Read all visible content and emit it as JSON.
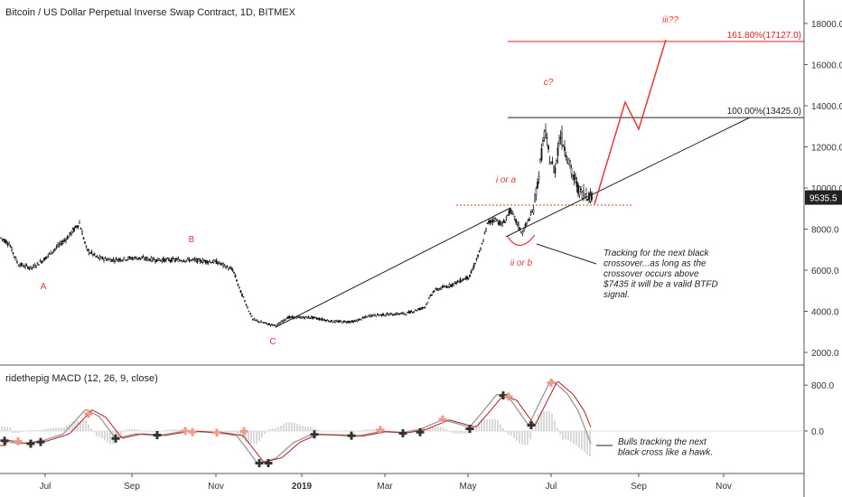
{
  "header": {
    "title": "Bitcoin / US Dollar Perpetual Inverse Swap Contract, 1D, BITMEX"
  },
  "price_panel": {
    "y_ticks": [
      "18000.0",
      "16000.0",
      "14000.0",
      "12000.0",
      "10000.0",
      "8000.0",
      "6000.0",
      "4000.0",
      "2000.0"
    ],
    "last_price": "9535.5",
    "fib_levels": [
      {
        "label": "161.80%(17127.0)",
        "price": 17127,
        "color": "#e02020"
      },
      {
        "label": "100.00%(13425.0)",
        "price": 13425,
        "color": "#222222"
      }
    ],
    "wave_labels": [
      "A",
      "B",
      "C",
      "i or a",
      "ii or b",
      "c?",
      "iii??"
    ],
    "note": "Tracking for the next black crossover...as long as the crossover occurs above $7435 it will be a valid BTFD signal."
  },
  "macd_panel": {
    "title": "ridethepig MACD (12, 26, 9, close)",
    "y_ticks": [
      "800.0",
      "0.0"
    ],
    "note": "Bulls tracking the next black cross like a hawk."
  },
  "x_axis": {
    "labels": [
      "Jul",
      "Sep",
      "Nov",
      "2019",
      "Mar",
      "May",
      "Jul",
      "Sep",
      "Nov"
    ]
  },
  "colors": {
    "annotation": "#e53935",
    "macd_signal": "#b71c1c",
    "macd_line": "#9e9e9e",
    "cross_black": "#333333",
    "cross_red": "#ef9a8a"
  },
  "chart_data": [
    {
      "type": "line",
      "title": "Bitcoin / US Dollar Perpetual Inverse Swap Contract, 1D, BITMEX",
      "xlabel": "",
      "ylabel": "",
      "ylim": [
        1000,
        19000
      ],
      "x": [
        "2018-06",
        "2018-07",
        "2018-08",
        "2018-09",
        "2018-10",
        "2018-11",
        "2018-12",
        "2019-01",
        "2019-02",
        "2019-03",
        "2019-04",
        "2019-05",
        "2019-06",
        "2019-07",
        "2019-08",
        "2019-09"
      ],
      "series": [
        {
          "values": [
            7500,
            6300,
            8200,
            6600,
            6500,
            6400,
            3300,
            3700,
            3500,
            3900,
            4200,
            5200,
            8700,
            12500,
            10800,
            9535
          ],
          "color": "#111111"
        }
      ]
    },
    {
      "type": "line",
      "title": "ridethepig MACD (12, 26, 9, close)",
      "xlabel": "",
      "ylabel": "",
      "ylim": [
        -800,
        1000
      ],
      "x": [
        "2018-06",
        "2018-07",
        "2018-08",
        "2018-09",
        "2018-10",
        "2018-11",
        "2018-12",
        "2019-01",
        "2019-02",
        "2019-03",
        "2019-04",
        "2019-05",
        "2019-06",
        "2019-07",
        "2019-08"
      ],
      "series": [
        {
          "values": [
            -150,
            -200,
            450,
            -100,
            0,
            50,
            -600,
            50,
            -40,
            10,
            120,
            600,
            500,
            900,
            -300
          ],
          "color": "#9e9e9e"
        },
        {
          "values": [
            -120,
            -150,
            380,
            -50,
            10,
            40,
            -500,
            20,
            -30,
            20,
            100,
            550,
            450,
            800,
            -250
          ],
          "color": "#b71c1c"
        }
      ]
    }
  ]
}
